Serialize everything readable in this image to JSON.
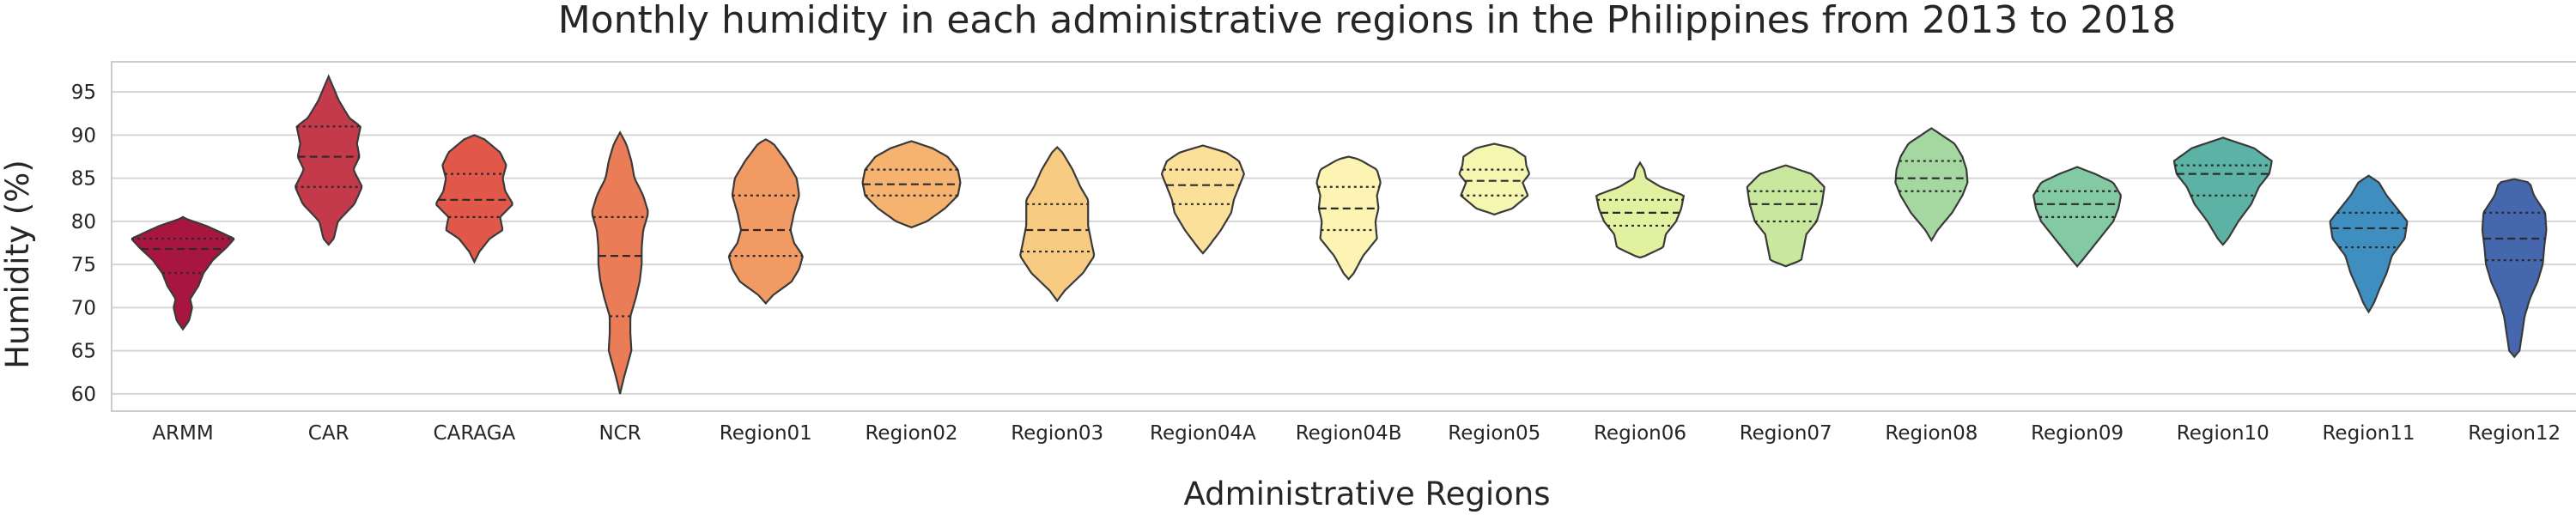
{
  "chart_data": {
    "type": "violin",
    "title": "Monthly humidity in each administrative regions in the Philippines from 2013 to 2018",
    "xlabel": "Administrative Regions",
    "ylabel": "Humidity (%)",
    "ylim": [
      58,
      98.5
    ],
    "yticks": [
      60,
      65,
      70,
      75,
      80,
      85,
      90,
      95
    ],
    "grid": "horizontal",
    "inner": "quartile",
    "categories": [
      {
        "name": "ARMM",
        "color": "#a8163f",
        "q1": 74.0,
        "median": 76.8,
        "q3": 78.0,
        "profile": [
          [
            67.5,
            0
          ],
          [
            68.5,
            0.12
          ],
          [
            70,
            0.18
          ],
          [
            71,
            0.14
          ],
          [
            72.5,
            0.3
          ],
          [
            74,
            0.4
          ],
          [
            75.5,
            0.58
          ],
          [
            77,
            0.85
          ],
          [
            78,
            1.0
          ],
          [
            79.5,
            0.45
          ],
          [
            80.2,
            0.1
          ],
          [
            80.5,
            0
          ]
        ]
      },
      {
        "name": "CAR",
        "color": "#c43a4a",
        "q1": 84.0,
        "median": 87.5,
        "q3": 91.0,
        "profile": [
          [
            77.3,
            0
          ],
          [
            78,
            0.1
          ],
          [
            80,
            0.18
          ],
          [
            82,
            0.5
          ],
          [
            84,
            0.65
          ],
          [
            86,
            0.48
          ],
          [
            87.5,
            0.6
          ],
          [
            89,
            0.55
          ],
          [
            91,
            0.62
          ],
          [
            92,
            0.4
          ],
          [
            94,
            0.2
          ],
          [
            96.8,
            0
          ]
        ]
      },
      {
        "name": "CARAGA",
        "color": "#e1584a",
        "q1": 80.5,
        "median": 82.5,
        "q3": 85.5,
        "profile": [
          [
            75.3,
            0
          ],
          [
            76.5,
            0.1
          ],
          [
            78,
            0.3
          ],
          [
            79,
            0.55
          ],
          [
            80.5,
            0.5
          ],
          [
            82,
            0.75
          ],
          [
            83.5,
            0.6
          ],
          [
            85,
            0.55
          ],
          [
            86.5,
            0.62
          ],
          [
            88,
            0.5
          ],
          [
            89.5,
            0.2
          ],
          [
            90,
            0
          ]
        ]
      },
      {
        "name": "NCR",
        "color": "#ea7c57",
        "q1": 69.0,
        "median": 76.0,
        "q3": 80.5,
        "profile": [
          [
            60,
            0
          ],
          [
            62,
            0.08
          ],
          [
            65,
            0.22
          ],
          [
            67,
            0.2
          ],
          [
            69,
            0.2
          ],
          [
            71,
            0.3
          ],
          [
            73,
            0.38
          ],
          [
            75,
            0.42
          ],
          [
            77,
            0.42
          ],
          [
            79,
            0.45
          ],
          [
            81,
            0.55
          ],
          [
            83,
            0.45
          ],
          [
            85,
            0.28
          ],
          [
            87,
            0.22
          ],
          [
            89,
            0.12
          ],
          [
            90.3,
            0
          ]
        ]
      },
      {
        "name": "Region01",
        "color": "#f29a63",
        "q1": 76.0,
        "median": 79.0,
        "q3": 83.0,
        "profile": [
          [
            70.5,
            0
          ],
          [
            71.5,
            0.15
          ],
          [
            73,
            0.5
          ],
          [
            74.5,
            0.65
          ],
          [
            76,
            0.72
          ],
          [
            77.5,
            0.55
          ],
          [
            79,
            0.48
          ],
          [
            81,
            0.55
          ],
          [
            83,
            0.65
          ],
          [
            85,
            0.6
          ],
          [
            87,
            0.4
          ],
          [
            89,
            0.15
          ],
          [
            89.5,
            0
          ]
        ]
      },
      {
        "name": "Region02",
        "color": "#f6b26f",
        "q1": 83.0,
        "median": 84.3,
        "q3": 86.0,
        "profile": [
          [
            79.3,
            0
          ],
          [
            80,
            0.3
          ],
          [
            81.5,
            0.65
          ],
          [
            83,
            0.9
          ],
          [
            84.5,
            0.95
          ],
          [
            86,
            0.9
          ],
          [
            87.5,
            0.7
          ],
          [
            88.5,
            0.4
          ],
          [
            89.3,
            0
          ]
        ]
      },
      {
        "name": "Region03",
        "color": "#f8cb83",
        "q1": 76.5,
        "median": 79.0,
        "q3": 82.0,
        "profile": [
          [
            70.8,
            0
          ],
          [
            72,
            0.15
          ],
          [
            74,
            0.5
          ],
          [
            76,
            0.72
          ],
          [
            78,
            0.65
          ],
          [
            79.5,
            0.6
          ],
          [
            81,
            0.6
          ],
          [
            82.5,
            0.6
          ],
          [
            84,
            0.45
          ],
          [
            86,
            0.3
          ],
          [
            88,
            0.1
          ],
          [
            88.6,
            0
          ]
        ]
      },
      {
        "name": "Region04A",
        "color": "#fbe09a",
        "q1": 82.0,
        "median": 84.2,
        "q3": 86.0,
        "profile": [
          [
            76.3,
            0
          ],
          [
            77,
            0.1
          ],
          [
            79,
            0.35
          ],
          [
            81,
            0.55
          ],
          [
            82.5,
            0.6
          ],
          [
            84,
            0.7
          ],
          [
            85.5,
            0.8
          ],
          [
            87,
            0.7
          ],
          [
            88,
            0.45
          ],
          [
            88.8,
            0
          ]
        ]
      },
      {
        "name": "Region04B",
        "color": "#fdf3b2",
        "q1": 79.0,
        "median": 81.5,
        "q3": 84.0,
        "profile": [
          [
            73.3,
            0
          ],
          [
            74,
            0.1
          ],
          [
            76,
            0.28
          ],
          [
            78,
            0.55
          ],
          [
            80,
            0.52
          ],
          [
            81.5,
            0.58
          ],
          [
            83,
            0.55
          ],
          [
            84.5,
            0.62
          ],
          [
            86,
            0.55
          ],
          [
            87.2,
            0.2
          ],
          [
            87.5,
            0
          ]
        ]
      },
      {
        "name": "Region05",
        "color": "#f5f7b0",
        "q1": 83.0,
        "median": 84.7,
        "q3": 86.0,
        "profile": [
          [
            80.8,
            0
          ],
          [
            81.5,
            0.35
          ],
          [
            83,
            0.65
          ],
          [
            84.5,
            0.55
          ],
          [
            85.5,
            0.68
          ],
          [
            86.5,
            0.62
          ],
          [
            87.5,
            0.6
          ],
          [
            88.5,
            0.35
          ],
          [
            89,
            0
          ]
        ]
      },
      {
        "name": "Region06",
        "color": "#e2f1a0",
        "q1": 79.5,
        "median": 81.0,
        "q3": 82.5,
        "profile": [
          [
            75.8,
            0
          ],
          [
            76,
            0.1
          ],
          [
            77,
            0.45
          ],
          [
            78.5,
            0.5
          ],
          [
            80,
            0.7
          ],
          [
            81.5,
            0.8
          ],
          [
            83,
            0.85
          ],
          [
            84,
            0.4
          ],
          [
            85,
            0.12
          ],
          [
            86,
            0.08
          ],
          [
            86.8,
            0
          ]
        ]
      },
      {
        "name": "Region07",
        "color": "#c9e89e",
        "q1": 80.0,
        "median": 82.0,
        "q3": 83.5,
        "profile": [
          [
            74.8,
            0
          ],
          [
            75.5,
            0.3
          ],
          [
            77,
            0.35
          ],
          [
            78.5,
            0.4
          ],
          [
            80,
            0.6
          ],
          [
            82,
            0.7
          ],
          [
            84,
            0.75
          ],
          [
            85.5,
            0.5
          ],
          [
            86.5,
            0
          ]
        ]
      },
      {
        "name": "Region08",
        "color": "#a4d8a0",
        "q1": 83.5,
        "median": 85.0,
        "q3": 87.0,
        "profile": [
          [
            77.8,
            0
          ],
          [
            79,
            0.12
          ],
          [
            81,
            0.4
          ],
          [
            83,
            0.6
          ],
          [
            84.5,
            0.7
          ],
          [
            86,
            0.68
          ],
          [
            87.5,
            0.6
          ],
          [
            89,
            0.45
          ],
          [
            90.2,
            0.15
          ],
          [
            90.8,
            0
          ]
        ]
      },
      {
        "name": "Region09",
        "color": "#83c9a3",
        "q1": 80.5,
        "median": 82.0,
        "q3": 83.5,
        "profile": [
          [
            74.8,
            0
          ],
          [
            75.5,
            0.1
          ],
          [
            77,
            0.3
          ],
          [
            78.5,
            0.5
          ],
          [
            80,
            0.7
          ],
          [
            81.5,
            0.8
          ],
          [
            83,
            0.85
          ],
          [
            84.5,
            0.7
          ],
          [
            85.5,
            0.35
          ],
          [
            86.3,
            0
          ]
        ]
      },
      {
        "name": "Region10",
        "color": "#5db2a6",
        "q1": 83.0,
        "median": 85.5,
        "q3": 86.5,
        "profile": [
          [
            77.3,
            0
          ],
          [
            78,
            0.1
          ],
          [
            80,
            0.3
          ],
          [
            82,
            0.55
          ],
          [
            84,
            0.7
          ],
          [
            85.5,
            0.9
          ],
          [
            87,
            0.95
          ],
          [
            88.5,
            0.6
          ],
          [
            89.7,
            0
          ]
        ]
      },
      {
        "name": "Region11",
        "color": "#3f8ec0",
        "q1": 77.0,
        "median": 79.2,
        "q3": 81.0,
        "profile": [
          [
            69.5,
            0
          ],
          [
            70.5,
            0.1
          ],
          [
            72,
            0.2
          ],
          [
            74,
            0.35
          ],
          [
            76,
            0.45
          ],
          [
            78,
            0.7
          ],
          [
            80,
            0.75
          ],
          [
            81.5,
            0.55
          ],
          [
            83,
            0.35
          ],
          [
            84.5,
            0.2
          ],
          [
            85.3,
            0
          ]
        ]
      },
      {
        "name": "Region12",
        "color": "#4467ae",
        "q1": 75.5,
        "median": 78.0,
        "q3": 81.0,
        "profile": [
          [
            64.3,
            0
          ],
          [
            65,
            0.1
          ],
          [
            67,
            0.15
          ],
          [
            69,
            0.2
          ],
          [
            71,
            0.3
          ],
          [
            73,
            0.45
          ],
          [
            75,
            0.55
          ],
          [
            77,
            0.58
          ],
          [
            79,
            0.62
          ],
          [
            81,
            0.6
          ],
          [
            83,
            0.38
          ],
          [
            84.5,
            0.3
          ],
          [
            84.9,
            0
          ]
        ]
      }
    ]
  }
}
